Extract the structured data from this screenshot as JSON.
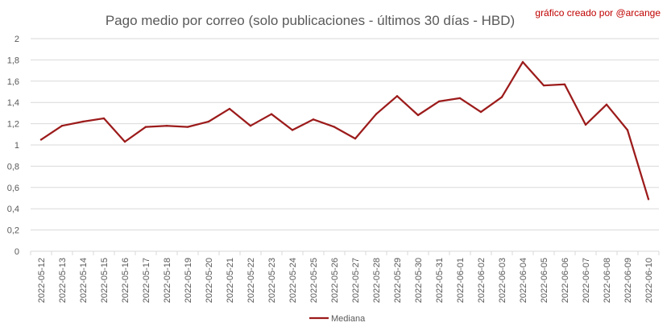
{
  "chart_data": {
    "type": "line",
    "title": "Pago medio por correo (solo publicaciones - últimos 30 días - HBD)",
    "credit": "gráfico creado por @arcange",
    "xlabel": "",
    "ylabel": "",
    "ylim": [
      0,
      2
    ],
    "yticks": [
      "0",
      "0,2",
      "0,4",
      "0,6",
      "0,8",
      "1",
      "1,2",
      "1,4",
      "1,6",
      "1,8",
      "2"
    ],
    "grid": true,
    "legend_position": "bottom",
    "categories": [
      "2022-05-12",
      "2022-05-13",
      "2022-05-14",
      "2022-05-15",
      "2022-05-16",
      "2022-05-17",
      "2022-05-18",
      "2022-05-19",
      "2022-05-20",
      "2022-05-21",
      "2022-05-22",
      "2022-05-23",
      "2022-05-24",
      "2022-05-25",
      "2022-05-26",
      "2022-05-27",
      "2022-05-28",
      "2022-05-29",
      "2022-05-30",
      "2022-05-31",
      "2022-06-01",
      "2022-06-02",
      "2022-06-03",
      "2022-06-04",
      "2022-06-05",
      "2022-06-06",
      "2022-06-07",
      "2022-06-08",
      "2022-06-09",
      "2022-06-10"
    ],
    "series": [
      {
        "name": "Mediana",
        "color": "#9c1b1b",
        "values": [
          1.05,
          1.18,
          1.22,
          1.25,
          1.03,
          1.17,
          1.18,
          1.17,
          1.22,
          1.34,
          1.18,
          1.29,
          1.14,
          1.24,
          1.17,
          1.06,
          1.29,
          1.46,
          1.28,
          1.41,
          1.44,
          1.31,
          1.45,
          1.78,
          1.56,
          1.57,
          1.19,
          1.38,
          1.14,
          0.49
        ]
      }
    ]
  },
  "colors": {
    "credit": "#c00000",
    "grid": "#d9d9d9",
    "text": "#595959"
  }
}
